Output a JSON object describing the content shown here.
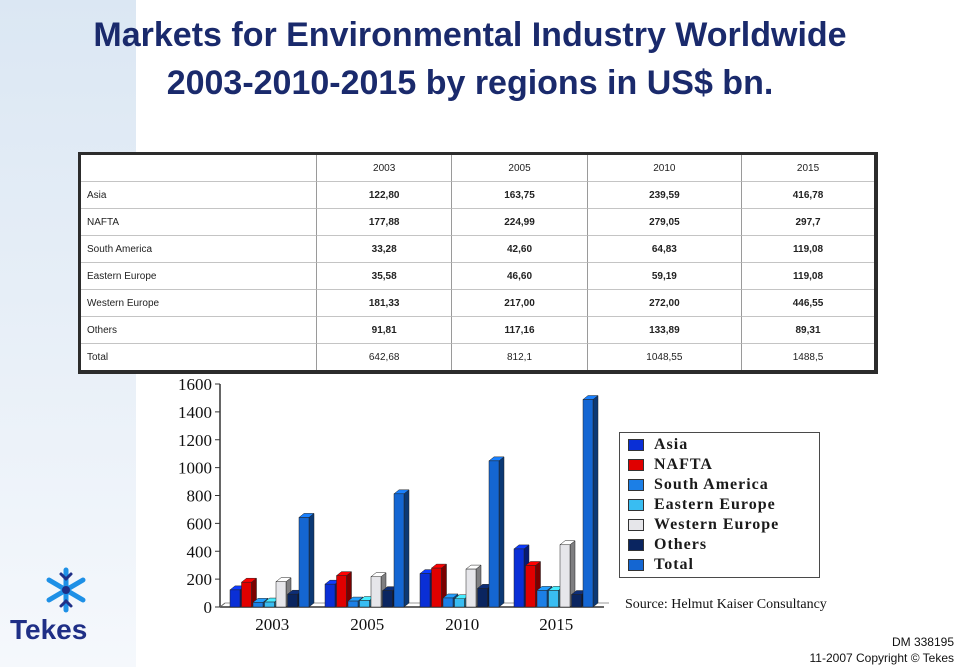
{
  "title": {
    "line1": "Markets for Environmental Industry Worldwide",
    "line2": "2003-2010-2015  by regions in US$ bn."
  },
  "table": {
    "years": [
      "2003",
      "2005",
      "2010",
      "2015"
    ],
    "rows": [
      {
        "label": "Asia",
        "values": [
          "122,80",
          "163,75",
          "239,59",
          "416,78"
        ]
      },
      {
        "label": "NAFTA",
        "values": [
          "177,88",
          "224,99",
          "279,05",
          "297,7"
        ]
      },
      {
        "label": "South America",
        "values": [
          "33,28",
          "42,60",
          "64,83",
          "119,08"
        ]
      },
      {
        "label": "Eastern Europe",
        "values": [
          "35,58",
          "46,60",
          "59,19",
          "119,08"
        ]
      },
      {
        "label": "Western Europe",
        "values": [
          "181,33",
          "217,00",
          "272,00",
          "446,55"
        ]
      },
      {
        "label": "Others",
        "values": [
          "91,81",
          "117,16",
          "133,89",
          "89,31"
        ]
      },
      {
        "label": "Total",
        "values": [
          "642,68",
          "812,1",
          "1048,55",
          "1488,5"
        ]
      }
    ]
  },
  "chart_data": {
    "type": "bar",
    "categories": [
      "2003",
      "2005",
      "2010",
      "2015"
    ],
    "series": [
      {
        "name": "Asia",
        "color": "#0a2fd6",
        "values": [
          122.8,
          163.75,
          239.59,
          416.78
        ]
      },
      {
        "name": "NAFTA",
        "color": "#e00000",
        "values": [
          177.88,
          224.99,
          279.05,
          297.7
        ]
      },
      {
        "name": "South America",
        "color": "#1c7fe6",
        "values": [
          33.28,
          42.6,
          64.83,
          119.08
        ]
      },
      {
        "name": "Eastern Europe",
        "color": "#39bdf2",
        "values": [
          35.58,
          46.6,
          59.19,
          119.08
        ]
      },
      {
        "name": "Western Europe",
        "color": "#e6e6ea",
        "values": [
          181.33,
          217.0,
          272.0,
          446.55
        ]
      },
      {
        "name": "Others",
        "color": "#0a2560",
        "values": [
          91.81,
          117.16,
          133.89,
          89.31
        ]
      },
      {
        "name": "Total",
        "color": "#1466d2",
        "values": [
          642.68,
          812.1,
          1048.55,
          1488.5
        ]
      }
    ],
    "y_ticks": [
      "0",
      "200",
      "400",
      "600",
      "800",
      "1000",
      "1200",
      "1400",
      "1600"
    ],
    "ylim": [
      0,
      1600
    ],
    "grid": false,
    "legend_position": "right",
    "style": "3d"
  },
  "source": "Source: Helmut Kaiser Consultancy",
  "footer": {
    "doc_id": "DM 338195",
    "copyright": "11-2007 Copyright © Tekes"
  },
  "logo": {
    "text": "Tekes",
    "icon": "snowflake-icon"
  }
}
